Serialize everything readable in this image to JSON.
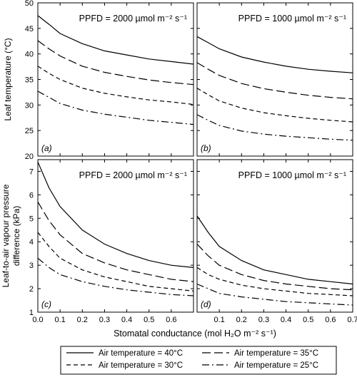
{
  "chart_data": [
    {
      "panel": "(a)",
      "annotation": "PPFD = 2000 µmol m⁻² s⁻¹",
      "ylabel": "Leaf temperature (°C)",
      "xlim": [
        0,
        0.7
      ],
      "ylim": [
        20,
        50
      ],
      "yticks": [
        20,
        25,
        30,
        35,
        40,
        45,
        50
      ],
      "series": [
        {
          "name": "Air temperature = 40°C",
          "x": [
            0,
            0.05,
            0.1,
            0.2,
            0.3,
            0.4,
            0.5,
            0.6,
            0.7
          ],
          "y": [
            47.5,
            45.8,
            44.0,
            42.0,
            40.6,
            39.8,
            39.0,
            38.5,
            38.0
          ]
        },
        {
          "name": "Air temperature = 35°C",
          "x": [
            0,
            0.05,
            0.1,
            0.2,
            0.3,
            0.4,
            0.5,
            0.6,
            0.7
          ],
          "y": [
            42.6,
            41.0,
            39.6,
            37.6,
            36.4,
            35.6,
            34.9,
            34.4,
            34.0
          ]
        },
        {
          "name": "Air temperature = 30°C",
          "x": [
            0,
            0.05,
            0.1,
            0.2,
            0.3,
            0.4,
            0.5,
            0.6,
            0.7
          ],
          "y": [
            37.6,
            36.2,
            35.0,
            33.3,
            32.3,
            31.6,
            31.0,
            30.6,
            30.1
          ]
        },
        {
          "name": "Air temperature = 25°C",
          "x": [
            0,
            0.05,
            0.1,
            0.2,
            0.3,
            0.4,
            0.5,
            0.6,
            0.7
          ],
          "y": [
            32.7,
            31.5,
            30.3,
            29.0,
            28.2,
            27.6,
            27.0,
            26.6,
            26.2
          ]
        }
      ]
    },
    {
      "panel": "(b)",
      "annotation": "PPFD = 1000 µmol m⁻² s⁻¹",
      "xlim": [
        0,
        0.7
      ],
      "ylim": [
        20,
        50
      ],
      "series": [
        {
          "name": "Air temperature = 40°C",
          "x": [
            0,
            0.05,
            0.1,
            0.2,
            0.3,
            0.4,
            0.5,
            0.6,
            0.7
          ],
          "y": [
            43.4,
            42.2,
            41.0,
            39.4,
            38.4,
            37.6,
            37.0,
            36.6,
            36.3
          ]
        },
        {
          "name": "Air temperature = 35°C",
          "x": [
            0,
            0.05,
            0.1,
            0.2,
            0.3,
            0.4,
            0.5,
            0.6,
            0.7
          ],
          "y": [
            38.3,
            37.0,
            35.8,
            34.2,
            33.2,
            32.5,
            31.9,
            31.5,
            31.2
          ]
        },
        {
          "name": "Air temperature = 30°C",
          "x": [
            0,
            0.05,
            0.1,
            0.2,
            0.3,
            0.4,
            0.5,
            0.6,
            0.7
          ],
          "y": [
            33.3,
            32.0,
            30.8,
            29.4,
            28.5,
            27.9,
            27.4,
            27.0,
            26.7
          ]
        },
        {
          "name": "Air temperature = 25°C",
          "x": [
            0,
            0.05,
            0.1,
            0.2,
            0.3,
            0.4,
            0.5,
            0.6,
            0.7
          ],
          "y": [
            28.1,
            27.0,
            26.0,
            24.9,
            24.3,
            23.9,
            23.6,
            23.3,
            23.1
          ]
        }
      ]
    },
    {
      "panel": "(c)",
      "annotation": "PPFD = 2000 µmol m⁻² s⁻¹",
      "ylabel": "Leaf-to-air vapour pressure difference (kPa)",
      "xlabel": "Stomatal conductance (mol H₂O m⁻² s⁻¹)",
      "xticks": [
        "0.0",
        "0.1",
        "0.2",
        "0.3",
        "0.4",
        "0.5",
        "0.6"
      ],
      "xlim": [
        0,
        0.7
      ],
      "ylim": [
        1,
        7.5
      ],
      "yticks": [
        1,
        2,
        3,
        4,
        5,
        6,
        7
      ],
      "series": [
        {
          "name": "Air temperature = 40°C",
          "x": [
            0,
            0.05,
            0.1,
            0.2,
            0.3,
            0.4,
            0.5,
            0.6,
            0.7
          ],
          "y": [
            7.4,
            6.3,
            5.5,
            4.5,
            3.9,
            3.5,
            3.2,
            3.0,
            2.9
          ]
        },
        {
          "name": "Air temperature = 35°C",
          "x": [
            0,
            0.05,
            0.1,
            0.2,
            0.3,
            0.4,
            0.5,
            0.6,
            0.7
          ],
          "y": [
            5.7,
            4.9,
            4.3,
            3.5,
            3.1,
            2.8,
            2.6,
            2.4,
            2.3
          ]
        },
        {
          "name": "Air temperature = 30°C",
          "x": [
            0,
            0.05,
            0.1,
            0.2,
            0.3,
            0.4,
            0.5,
            0.6,
            0.7
          ],
          "y": [
            4.4,
            3.8,
            3.3,
            2.8,
            2.5,
            2.3,
            2.1,
            2.0,
            1.9
          ]
        },
        {
          "name": "Air temperature = 25°C",
          "x": [
            0,
            0.05,
            0.1,
            0.2,
            0.3,
            0.4,
            0.5,
            0.6,
            0.7
          ],
          "y": [
            3.3,
            2.9,
            2.6,
            2.3,
            2.1,
            1.95,
            1.85,
            1.75,
            1.7
          ]
        }
      ]
    },
    {
      "panel": "(d)",
      "annotation": "PPFD = 1000 µmol m⁻² s⁻¹",
      "xticks": [
        "0.1",
        "0.2",
        "0.3",
        "0.4",
        "0.5",
        "0.6",
        "0.7"
      ],
      "xlim": [
        0,
        0.7
      ],
      "ylim": [
        1,
        7.5
      ],
      "series": [
        {
          "name": "Air temperature = 40°C",
          "x": [
            0,
            0.05,
            0.1,
            0.2,
            0.3,
            0.4,
            0.5,
            0.6,
            0.7
          ],
          "y": [
            5.1,
            4.4,
            3.8,
            3.2,
            2.8,
            2.6,
            2.4,
            2.3,
            2.2
          ]
        },
        {
          "name": "Air temperature = 35°C",
          "x": [
            0,
            0.05,
            0.1,
            0.2,
            0.3,
            0.4,
            0.5,
            0.6,
            0.7
          ],
          "y": [
            3.9,
            3.4,
            3.0,
            2.6,
            2.35,
            2.2,
            2.1,
            2.0,
            1.95
          ]
        },
        {
          "name": "Air temperature = 30°C",
          "x": [
            0,
            0.05,
            0.1,
            0.2,
            0.3,
            0.4,
            0.5,
            0.6,
            0.7
          ],
          "y": [
            2.9,
            2.6,
            2.4,
            2.15,
            2.0,
            1.9,
            1.8,
            1.75,
            1.7
          ]
        },
        {
          "name": "Air temperature = 25°C",
          "x": [
            0,
            0.05,
            0.1,
            0.2,
            0.3,
            0.4,
            0.5,
            0.6,
            0.7
          ],
          "y": [
            2.2,
            2.0,
            1.8,
            1.65,
            1.55,
            1.45,
            1.4,
            1.35,
            1.3
          ]
        }
      ]
    }
  ],
  "legend": {
    "items": [
      {
        "label": "Air temperature = 40°C",
        "dash": "solid"
      },
      {
        "label": "Air temperature = 35°C",
        "dash": "long-dash"
      },
      {
        "label": "Air temperature = 30°C",
        "dash": "short-dash"
      },
      {
        "label": "Air temperature = 25°C",
        "dash": "dash-dot"
      }
    ]
  }
}
